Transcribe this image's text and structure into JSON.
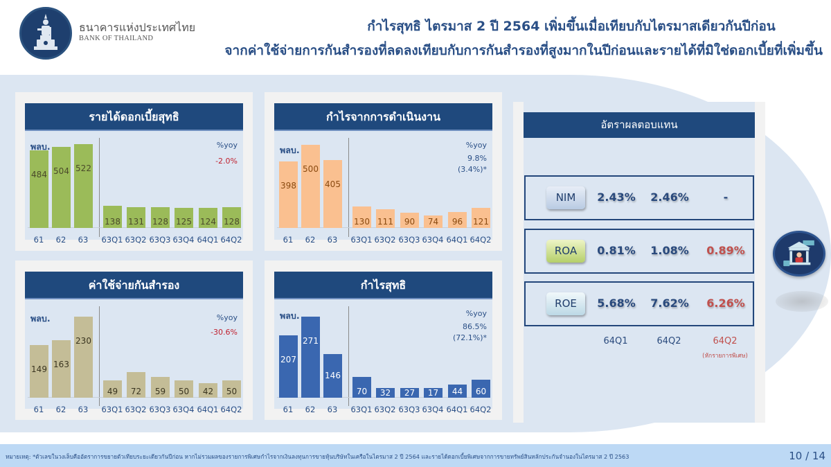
{
  "header": {
    "bank_name_th": "ธนาคารแห่งประเทศไทย",
    "bank_name_en": "BANK OF THAILAND",
    "title_line1": "กำไรสุทธิ ไตรมาส 2 ปี 2564 เพิ่มขึ้นเมื่อเทียบกับไตรมาสเดียวกันปีก่อน",
    "title_line2": "จากค่าใช้จ่ายการกันสำรองที่ลดลงเทียบกับการกันสำรองที่สูงมากในปีก่อนและรายได้ที่มิใช่ดอกเบี้ยที่เพิ่มขึ้น"
  },
  "colors": {
    "panel_header": "#1f497d",
    "nii_bar": "#9bbb59",
    "op_bar": "#fac090",
    "prov_bar": "#c4bd97",
    "np_bar": "#3a67b0",
    "negative_red": "#c0212f",
    "text_blue": "#2a4f86"
  },
  "chart_data": [
    {
      "type": "bar",
      "title": "รายได้ดอกเบี้ยสุทธิ",
      "ylabel": "พลบ.",
      "categories": [
        "61",
        "62",
        "63",
        "63Q1",
        "63Q2",
        "63Q3",
        "63Q4",
        "64Q1",
        "64Q2"
      ],
      "values": [
        484,
        504,
        522,
        138,
        131,
        128,
        125,
        124,
        128
      ],
      "yoy_label": "%yoy",
      "yoy": "-2.0%",
      "yoy_alt": "",
      "color": "#9bbb59"
    },
    {
      "type": "bar",
      "title": "กำไรจากการดำเนินงาน",
      "ylabel": "พลบ.",
      "categories": [
        "61",
        "62",
        "63",
        "63Q1",
        "63Q2",
        "63Q3",
        "63Q4",
        "64Q1",
        "64Q2"
      ],
      "values": [
        398,
        500,
        405,
        130,
        111,
        90,
        74,
        96,
        121
      ],
      "yoy_label": "%yoy",
      "yoy": "9.8%",
      "yoy_alt": "(3.4%)*",
      "color": "#fac090"
    },
    {
      "type": "bar",
      "title": "ค่าใช้จ่ายกันสำรอง",
      "ylabel": "พลบ.",
      "categories": [
        "61",
        "62",
        "63",
        "63Q1",
        "63Q2",
        "63Q3",
        "63Q4",
        "64Q1",
        "64Q2"
      ],
      "values": [
        149,
        163,
        230,
        49,
        72,
        59,
        50,
        42,
        50
      ],
      "yoy_label": "%yoy",
      "yoy": "-30.6%",
      "yoy_alt": "",
      "color": "#c4bd97"
    },
    {
      "type": "bar",
      "title": "กำไรสุทธิ",
      "ylabel": "พลบ.",
      "categories": [
        "61",
        "62",
        "63",
        "63Q1",
        "63Q2",
        "63Q3",
        "63Q4",
        "64Q1",
        "64Q2"
      ],
      "values": [
        207,
        271,
        146,
        70,
        32,
        27,
        17,
        44,
        60
      ],
      "yoy_label": "%yoy",
      "yoy": "86.5%",
      "yoy_alt": "(72.1%)*",
      "color": "#3a67b0"
    },
    {
      "type": "table",
      "title": "อัตราผลตอบแทน",
      "columns": [
        "64Q1",
        "64Q2",
        "64Q2"
      ],
      "column_note": "(หักรายการพิเศษ)",
      "rows": [
        {
          "label": "NIM",
          "values": [
            "2.43%",
            "2.46%",
            "-"
          ]
        },
        {
          "label": "ROA",
          "values": [
            "0.81%",
            "1.08%",
            "0.89%"
          ]
        },
        {
          "label": "ROE",
          "values": [
            "5.68%",
            "7.62%",
            "6.26%"
          ]
        }
      ]
    }
  ],
  "footer": {
    "note": "หมายเหตุ: *ตัวเลขในวงเล็บคืออัตราการขยายตัวเทียบระยะเดียวกันปีก่อน หากไม่รวมผลของรายการพิเศษกำไรจากเงินลงทุนการขายหุ้นบริษัทในเครือในไตรมาส 2 ปี 2564 และรายได้ดอกเบี้ยพิเศษจากการขายทรัพย์สินหลักประกันจำนองในไตรมาส 2 ปี 2563",
    "page": "10 / 14"
  }
}
